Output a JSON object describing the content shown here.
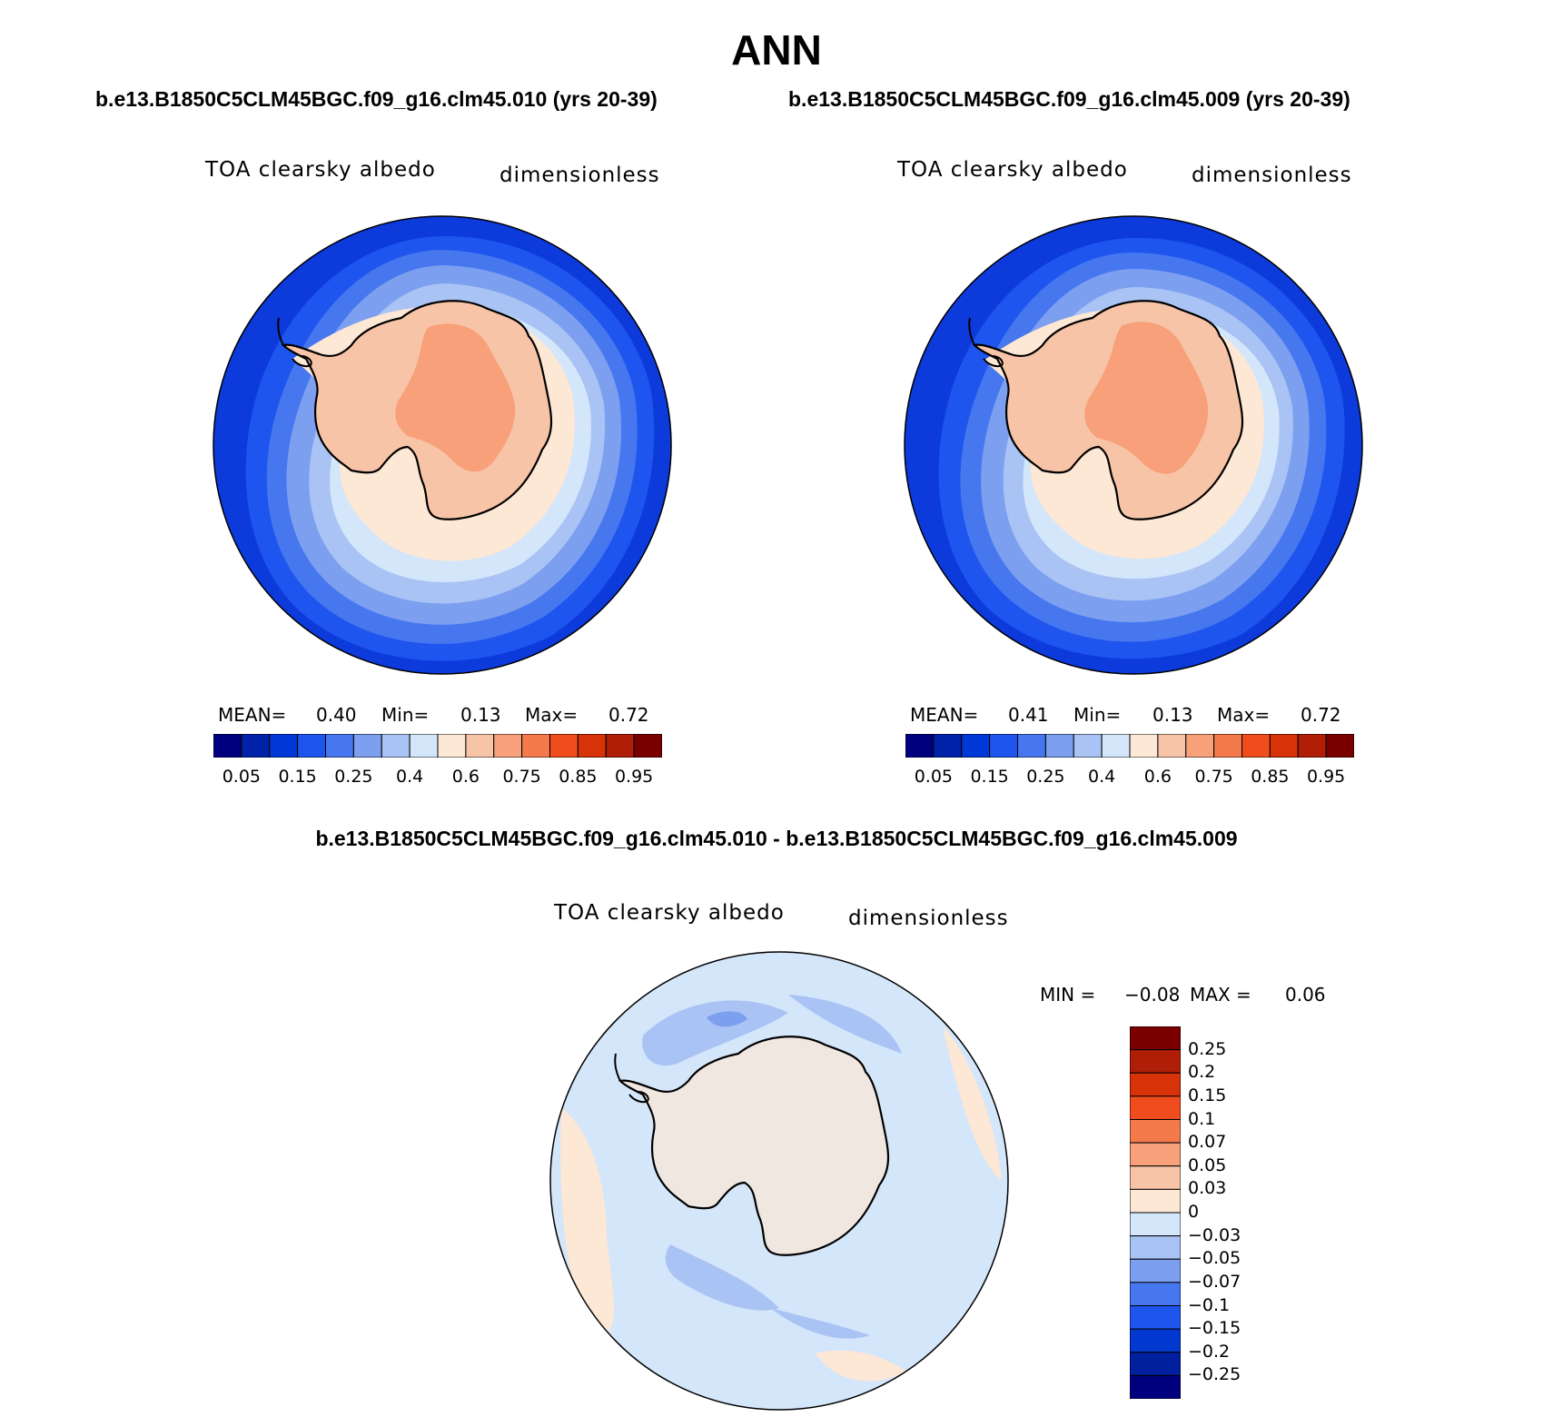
{
  "figure": {
    "season": "ANN",
    "case1": "b.e13.B1850C5CLM45BGC.f09_g16.clm45.010 (yrs 20-39)",
    "case2": "b.e13.B1850C5CLM45BGC.f09_g16.clm45.009 (yrs 20-39)",
    "difference_title": "b.e13.B1850C5CLM45BGC.f09_g16.clm45.010 - b.e13.B1850C5CLM45BGC.f09_g16.clm45.009"
  },
  "panels": {
    "left": {
      "variable": "TOA clearsky albedo",
      "units": "dimensionless",
      "mean_label": "MEAN=",
      "mean": "0.40",
      "min_label": "Min=",
      "min": "0.13",
      "max_label": "Max=",
      "max": "0.72"
    },
    "right": {
      "variable": "TOA clearsky albedo",
      "units": "dimensionless",
      "mean_label": "MEAN=",
      "mean": "0.41",
      "min_label": "Min=",
      "min": "0.13",
      "max_label": "Max=",
      "max": "0.72"
    },
    "diff": {
      "variable": "TOA clearsky albedo",
      "units": "dimensionless",
      "min_label": "MIN =",
      "min": "−0.08",
      "max_label": "MAX =",
      "max": "0.06"
    }
  },
  "colorbars": {
    "main_colors": [
      "#00007f",
      "#0022a8",
      "#0038d8",
      "#1e55ee",
      "#4677ef",
      "#7c9ff0",
      "#a9c3f4",
      "#d4e6fa",
      "#fde7d5",
      "#f8c4a7",
      "#f7a07a",
      "#f57a4b",
      "#f04c1e",
      "#d83208",
      "#b01e08",
      "#7a0000"
    ],
    "main_ticks": [
      "0.05",
      "0.15",
      "0.25",
      "0.4",
      "0.6",
      "0.75",
      "0.85",
      "0.95"
    ],
    "diff_colors": [
      "#00007f",
      "#0020a0",
      "#0038d0",
      "#1e55ee",
      "#4677ef",
      "#7c9ff0",
      "#a9c3f4",
      "#d4e6fa",
      "#fde7d5",
      "#f8c4a7",
      "#f7a07a",
      "#f57a4b",
      "#f04c1e",
      "#d83208",
      "#b01e08",
      "#7a0000"
    ],
    "diff_ticks": [
      "0.25",
      "0.2",
      "0.15",
      "0.1",
      "0.07",
      "0.05",
      "0.03",
      "0",
      "−0.03",
      "−0.05",
      "−0.07",
      "−0.1",
      "−0.15",
      "−0.2",
      "−0.25"
    ]
  },
  "map_colors": {
    "ocean_outer": "#0c3adb",
    "ocean_mid1": "#1e55ee",
    "ocean_mid2": "#4677ef",
    "ocean_mid3": "#7c9ff0",
    "ocean_mid4": "#a9c3f4",
    "ocean_inner": "#d4e6fa",
    "seaice": "#fde7d5",
    "land": "#f8c4a7",
    "plateau": "#f7a07a",
    "diff_bg": "#d4e6fa",
    "diff_neg": "#a9c3f4",
    "diff_neg2": "#7c9ff0",
    "diff_pos": "#fde7d5"
  }
}
